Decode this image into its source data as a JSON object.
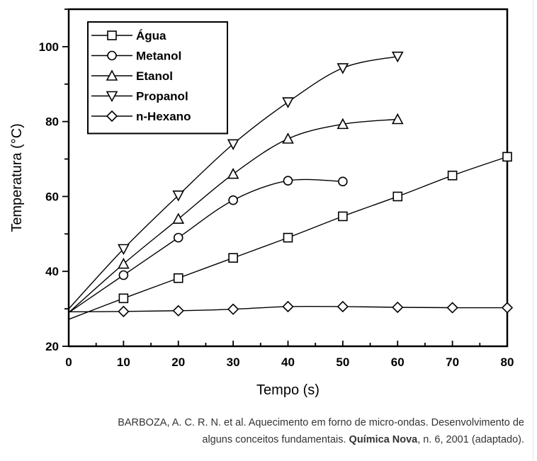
{
  "chart_data": {
    "type": "line",
    "xlabel": "Tempo (s)",
    "ylabel": "Temperatura (°C)",
    "xlim": [
      0,
      80
    ],
    "ylim": [
      20,
      110
    ],
    "xticks": [
      0,
      10,
      20,
      30,
      40,
      50,
      60,
      70,
      80
    ],
    "yticks": [
      20,
      40,
      60,
      80,
      100
    ],
    "grid": false,
    "legend_position": "top-left",
    "series": [
      {
        "name": "Água",
        "marker": "square",
        "x": [
          0,
          10,
          20,
          30,
          40,
          50,
          60,
          70,
          80
        ],
        "y": [
          27.2,
          32.8,
          38.2,
          43.6,
          49.0,
          54.7,
          60.0,
          65.6,
          70.6
        ]
      },
      {
        "name": "Metanol",
        "marker": "circle",
        "x": [
          0,
          10,
          20,
          30,
          40,
          50
        ],
        "y": [
          29.0,
          39.0,
          49.0,
          59.0,
          64.2,
          64.0
        ]
      },
      {
        "name": "Etanol",
        "marker": "triangle-up",
        "x": [
          0,
          10,
          20,
          30,
          40,
          50,
          60
        ],
        "y": [
          29.0,
          42.0,
          54.0,
          66.0,
          75.4,
          79.3,
          80.6
        ]
      },
      {
        "name": "Propanol",
        "marker": "triangle-down",
        "x": [
          0,
          10,
          20,
          30,
          40,
          50,
          60
        ],
        "y": [
          30.0,
          46.0,
          60.3,
          74.0,
          85.2,
          94.3,
          97.4
        ]
      },
      {
        "name": "n-Hexano",
        "marker": "diamond",
        "x": [
          0,
          10,
          20,
          30,
          40,
          50,
          60,
          70,
          80
        ],
        "y": [
          29.2,
          29.3,
          29.5,
          29.9,
          30.6,
          30.6,
          30.4,
          30.3,
          30.3
        ]
      }
    ]
  },
  "caption": {
    "line1": "BARBOZA, A. C. R. N. et al. Aquecimento em forno de micro-ondas. Desenvolvimento de",
    "line2_pre": "alguns conceitos fundamentais. ",
    "line2_bold": "Química Nova",
    "line2_post": ", n. 6, 2001 (adaptado)."
  }
}
